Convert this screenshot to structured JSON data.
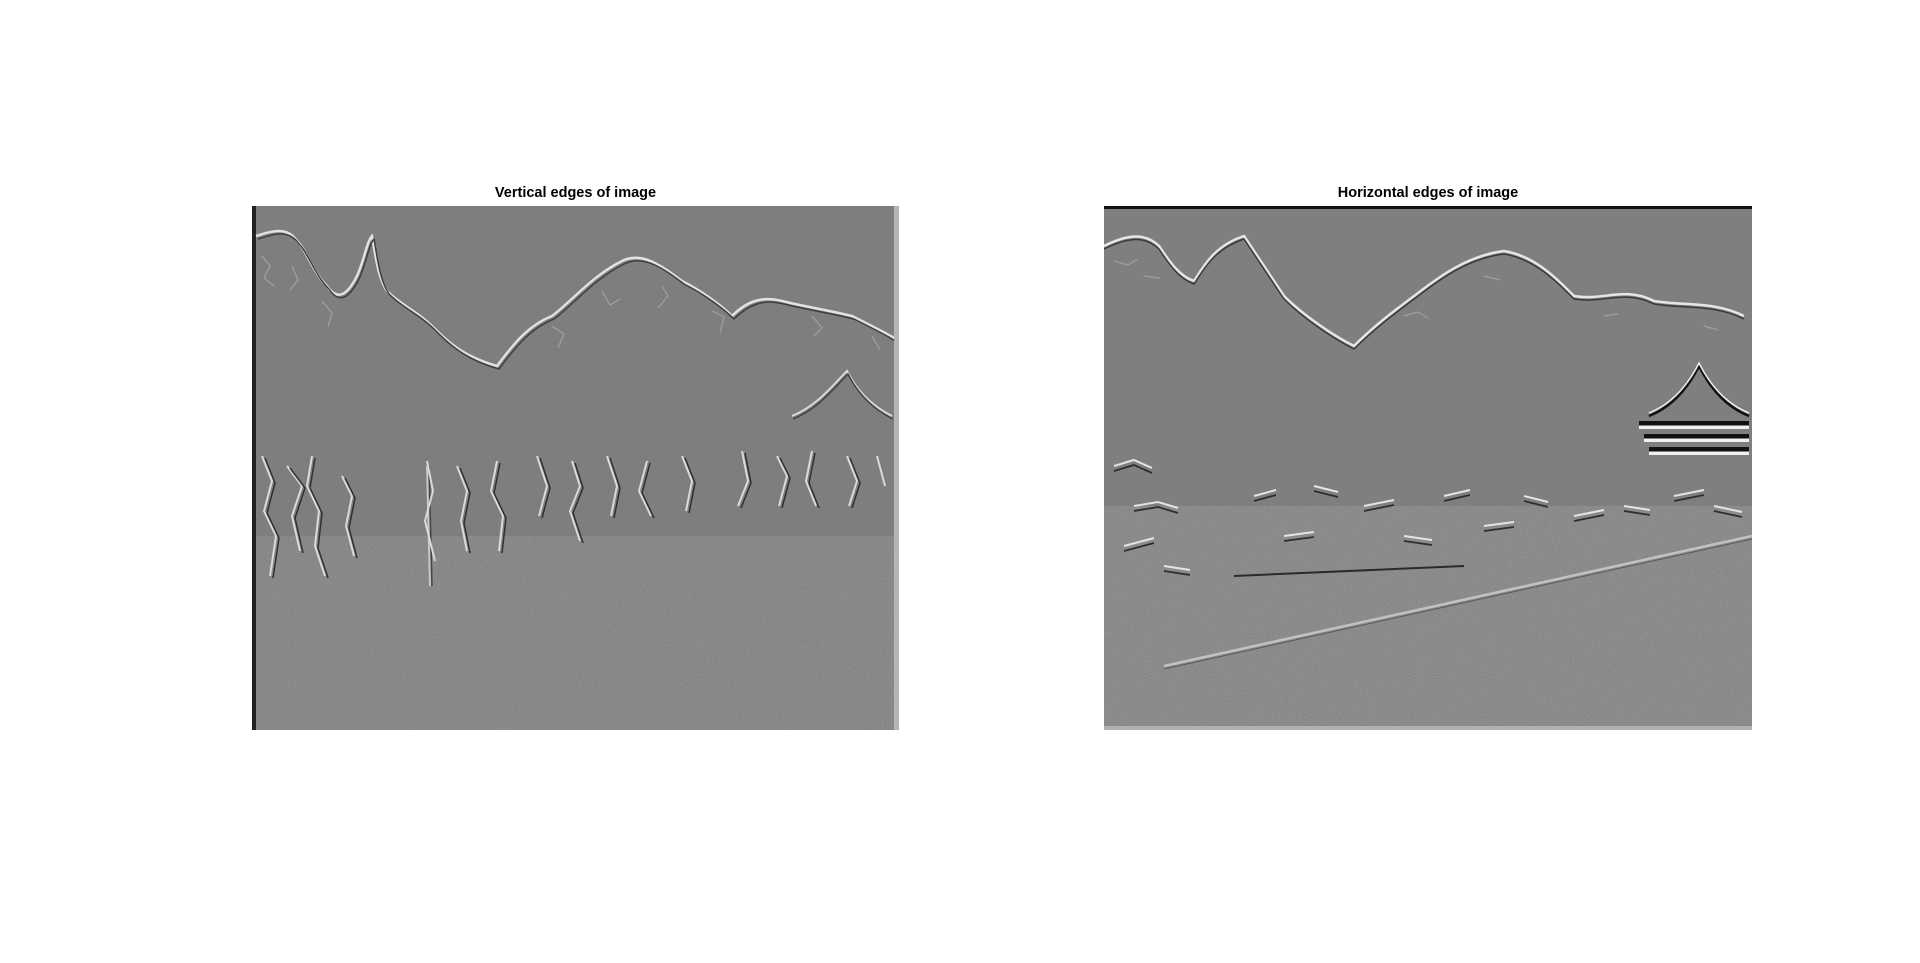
{
  "figure": {
    "subplots": [
      {
        "title": "Vertical edges of image"
      },
      {
        "title": "Horizontal edges of image"
      }
    ]
  }
}
